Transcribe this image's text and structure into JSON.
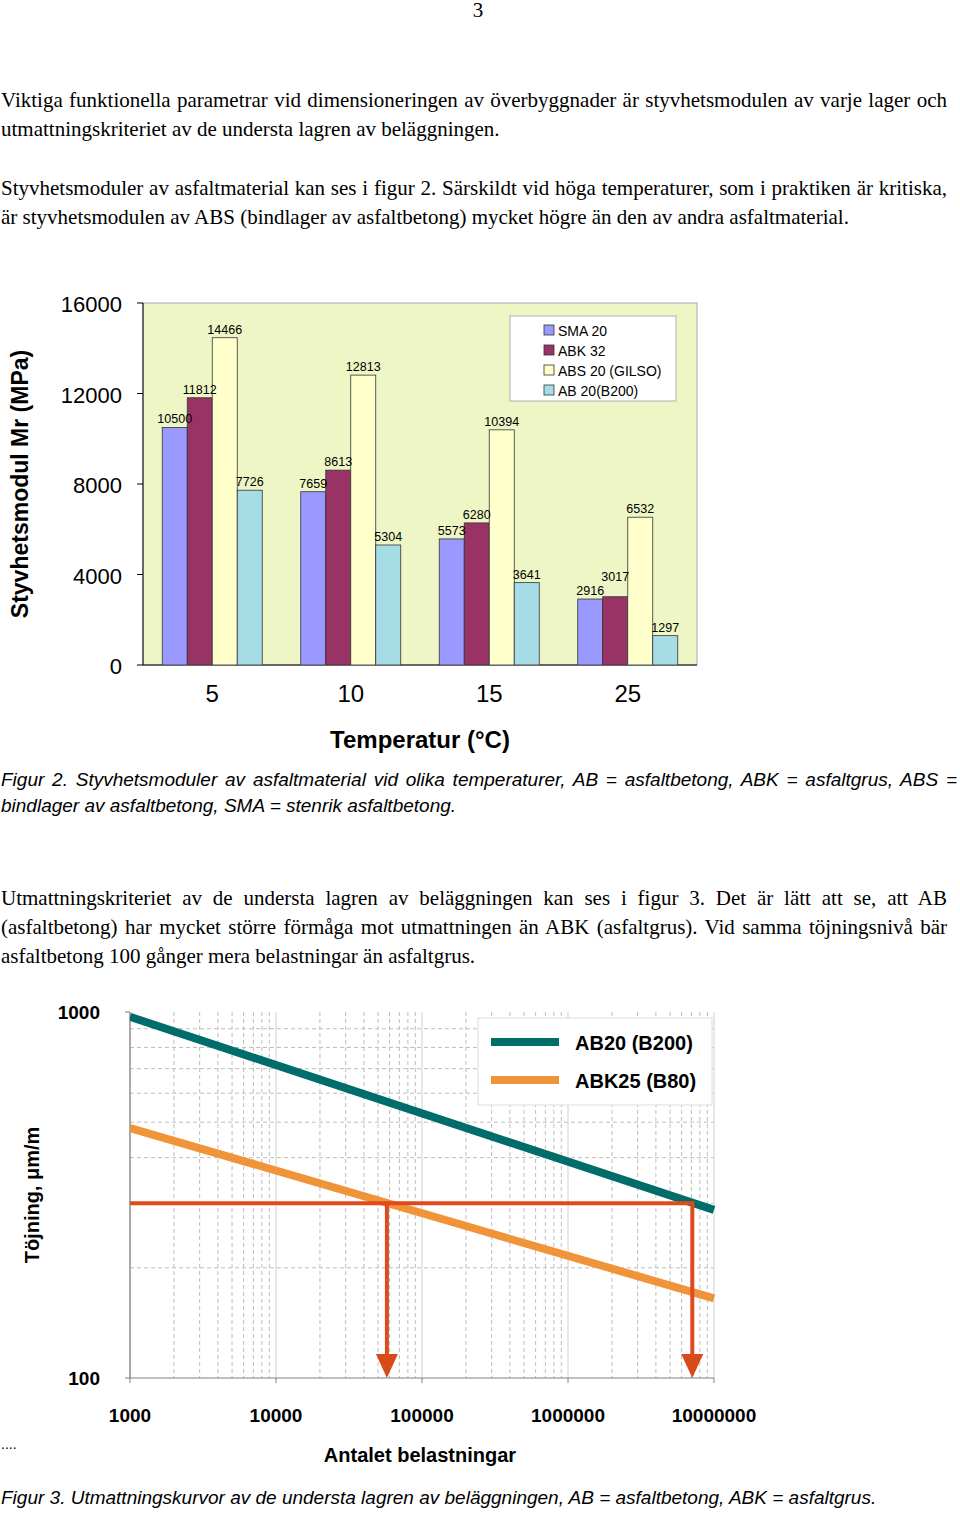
{
  "page": {
    "page_number": 3,
    "paragraphs": [
      "Viktiga funktionella parametrar vid dimensioneringen av överbyggnader är styvhetsmodulen av varje lager och utmattningskriteriet av de understa lagren av beläggningen.",
      "Styvhetsmoduler av asfaltmaterial kan ses i figur 2. Särskildt vid höga temperaturer, som i praktiken är kritiska, är styvhetsmodulen av ABS (bindlager av asfaltbetong) mycket högre än den av andra asfaltmaterial.",
      "Utmattningskriteriet av de understa lagren av beläggningen kan ses i figur 3. Det är lätt att se, att AB (asfaltbetong) har mycket större förmåga mot utmattningen än ABK (asfaltgrus). Vid samma töjningsnivå bär asfaltbetong 100 gånger mera belastningar än asfaltgrus."
    ],
    "captions": [
      "Figur 2. Styvhetsmoduler av asfaltmaterial vid olika temperaturer, AB = asfaltbetong, ABK = asfaltgrus, ABS = bindlager av asfaltbetong, SMA = stenrik asfaltbetong.",
      "Figur 3. Utmattningskurvor av de understa lagren av beläggningen, AB = asfaltbetong, ABK = asfaltgrus."
    ],
    "margin_text": "...."
  },
  "chart_data": [
    {
      "type": "bar",
      "x_label": "Temperatur (°C)",
      "y_label": "Styvhetsmodul Mr (MPa)",
      "categories": [
        "5",
        "10",
        "15",
        "25"
      ],
      "series": [
        {
          "name": "SMA 20",
          "color": "#9999ff",
          "values": [
            10500,
            7659,
            5573,
            2916
          ]
        },
        {
          "name": "ABK 32",
          "color": "#993366",
          "values": [
            11812,
            8613,
            6280,
            3017
          ]
        },
        {
          "name": "ABS 20 (GILSO)",
          "color": "#ffffcc",
          "values": [
            14466,
            12813,
            10394,
            6532
          ]
        },
        {
          "name": "AB 20(B200)",
          "color": "#a6dce6",
          "values": [
            7726,
            5304,
            3641,
            1297
          ]
        }
      ],
      "ylim": [
        0,
        16000
      ],
      "yticks": [
        0,
        4000,
        8000,
        12000,
        16000
      ],
      "data_labels": true,
      "legend": "top-right"
    },
    {
      "type": "line",
      "x_label": "Antalet belastningar",
      "y_label": "Töjning, μm/m",
      "x": [
        1000,
        10000000
      ],
      "series": [
        {
          "name": "AB20 (B200)",
          "color": "#006d6b",
          "values": [
            970,
            288
          ]
        },
        {
          "name": "ABK25 (B80)",
          "color": "#f0943a",
          "values": [
            482,
            165
          ]
        }
      ],
      "reference_strain": 300,
      "reference_cycles": [
        57500,
        7100000
      ],
      "reference_color": "#e04a1c",
      "log": true,
      "xlim": [
        1000,
        10000000
      ],
      "ylim": [
        100,
        1000
      ],
      "xticks": [
        1000,
        10000,
        100000,
        1000000,
        10000000
      ],
      "yticks": [
        100,
        1000
      ],
      "grid": true,
      "legend": "top-right"
    }
  ]
}
